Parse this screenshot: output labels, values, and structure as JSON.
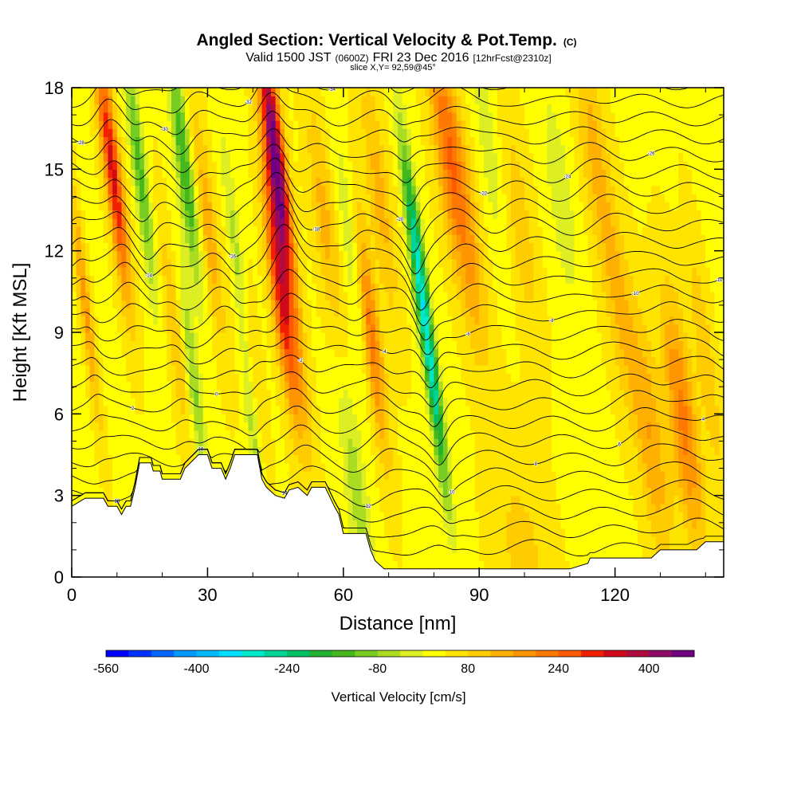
{
  "chart_data": {
    "type": "heatmap",
    "title": "Angled Section: Vertical Velocity & Pot.Temp.",
    "title_units": "(C)",
    "subtitle_parts": [
      "Valid 1500 JST",
      "(0600Z)",
      "FRI 23 Dec 2016",
      "[12hrFcst@2310z]"
    ],
    "subtitle2": "slice X,Y= 92,59@45°",
    "xlabel": "Distance [nm]",
    "ylabel": "Height [Kft MSL]",
    "xlim": [
      0,
      144
    ],
    "ylim": [
      0,
      18
    ],
    "xticks": [
      "0",
      "30",
      "60",
      "90",
      "120"
    ],
    "xtick_values": [
      0,
      30,
      60,
      90,
      120
    ],
    "yticks": [
      "0",
      "3",
      "6",
      "9",
      "12",
      "15",
      "18"
    ],
    "ytick_values": [
      0,
      3,
      6,
      9,
      12,
      15,
      18
    ],
    "colorbar": {
      "title": "Vertical Velocity [cm/s]",
      "min": -560,
      "max": 480,
      "step": 40,
      "labels": [
        "-560",
        "-400",
        "-240",
        "-80",
        "80",
        "240",
        "400"
      ],
      "label_values": [
        -560,
        -400,
        -240,
        -80,
        80,
        240,
        400
      ],
      "colors": [
        "#0000ff",
        "#0033ff",
        "#0066ff",
        "#0099ff",
        "#00bbff",
        "#00ddff",
        "#00e8c8",
        "#00d496",
        "#00c064",
        "#22b230",
        "#44b81c",
        "#77cc22",
        "#aadd22",
        "#ddee22",
        "#ffff00",
        "#ffe400",
        "#ffcc00",
        "#ffb000",
        "#ff9600",
        "#ff7800",
        "#ff5a00",
        "#f02000",
        "#d00a1a",
        "#b00c40",
        "#900a68",
        "#700080"
      ]
    },
    "updrafts": [
      {
        "x": 3,
        "z": 10,
        "w": 140,
        "wx": 1.2
      },
      {
        "x": 9,
        "z": 15,
        "w": 300,
        "wx": 1.8
      },
      {
        "x": 23,
        "z": 9,
        "w": 80,
        "wx": 2
      },
      {
        "x": 30,
        "z": 13,
        "w": 110,
        "wx": 2
      },
      {
        "x": 39,
        "z": 8,
        "w": 160,
        "wx": 2
      },
      {
        "x": 45,
        "z": 15.5,
        "w": 440,
        "wx": 2
      },
      {
        "x": 46,
        "z": 10.5,
        "w": 260,
        "wx": 2
      },
      {
        "x": 50,
        "z": 8,
        "w": 80,
        "wx": 2
      },
      {
        "x": 56,
        "z": 13,
        "w": 100,
        "wx": 2.5
      },
      {
        "x": 66,
        "z": 9,
        "w": 200,
        "wx": 2
      },
      {
        "x": 68,
        "z": 14,
        "w": 100,
        "wx": 2.5
      },
      {
        "x": 83,
        "z": 16,
        "w": 180,
        "wx": 3
      },
      {
        "x": 88,
        "z": 12,
        "w": 100,
        "wx": 3
      },
      {
        "x": 99,
        "z": 13,
        "w": 70,
        "wx": 3
      },
      {
        "x": 115,
        "z": 16,
        "w": 90,
        "wx": 3
      },
      {
        "x": 121,
        "z": 10,
        "w": 80,
        "wx": 3
      },
      {
        "x": 128,
        "z": 5,
        "w": 120,
        "wx": 3
      },
      {
        "x": 135,
        "z": 5.8,
        "w": 180,
        "wx": 3
      },
      {
        "x": 140,
        "z": 8,
        "w": 80,
        "wx": 2
      },
      {
        "x": 100,
        "z": 0.5,
        "w": 60,
        "wx": 6
      }
    ],
    "downdrafts": [
      {
        "x": 15,
        "z": 15,
        "w": -180,
        "wx": 1.5
      },
      {
        "x": 25,
        "z": 15,
        "w": -200,
        "wx": 1.8
      },
      {
        "x": 27,
        "z": 7,
        "w": -130,
        "wx": 1.5
      },
      {
        "x": 37,
        "z": 11,
        "w": -150,
        "wx": 1.5
      },
      {
        "x": 40,
        "z": 5.5,
        "w": -160,
        "wx": 1.5
      },
      {
        "x": 62,
        "z": 12,
        "w": -90,
        "wx": 2
      },
      {
        "x": 76,
        "z": 12,
        "w": -260,
        "wx": 1.5
      },
      {
        "x": 80,
        "z": 7,
        "w": -240,
        "wx": 1.5
      },
      {
        "x": 92,
        "z": 16,
        "w": -60,
        "wx": 2.5
      },
      {
        "x": 63,
        "z": 3,
        "w": -100,
        "wx": 2.5
      },
      {
        "x": 108,
        "z": 14,
        "w": -60,
        "wx": 3
      }
    ],
    "terrain": [
      [
        0,
        2.6
      ],
      [
        3,
        2.9
      ],
      [
        7,
        2.9
      ],
      [
        8,
        2.6
      ],
      [
        10,
        2.6
      ],
      [
        11,
        2.3
      ],
      [
        12,
        2.6
      ],
      [
        13,
        2.6
      ],
      [
        14,
        3.3
      ],
      [
        15,
        4.2
      ],
      [
        17.5,
        4.2
      ],
      [
        18,
        3.9
      ],
      [
        19.5,
        3.9
      ],
      [
        20,
        3.6
      ],
      [
        24,
        3.6
      ],
      [
        25,
        4.0
      ],
      [
        28,
        4.5
      ],
      [
        30,
        4.5
      ],
      [
        31,
        4.0
      ],
      [
        33,
        4.0
      ],
      [
        34,
        3.6
      ],
      [
        35,
        4.0
      ],
      [
        36,
        4.5
      ],
      [
        41,
        4.5
      ],
      [
        42,
        3.6
      ],
      [
        43,
        3.3
      ],
      [
        45,
        3.0
      ],
      [
        47,
        2.9
      ],
      [
        48,
        3.2
      ],
      [
        50,
        3.3
      ],
      [
        52,
        3.0
      ],
      [
        53,
        3.3
      ],
      [
        56,
        3.3
      ],
      [
        58,
        2.6
      ],
      [
        59,
        2.3
      ],
      [
        60,
        1.6
      ],
      [
        65,
        1.6
      ],
      [
        66,
        1.0
      ],
      [
        67,
        0.6
      ],
      [
        69,
        0.3
      ],
      [
        90,
        0.3
      ],
      [
        95,
        0.3
      ],
      [
        98,
        0.3
      ],
      [
        110,
        0.3
      ],
      [
        114,
        0.5
      ],
      [
        114.5,
        0.7
      ],
      [
        128,
        0.7
      ],
      [
        130,
        1.0
      ],
      [
        138,
        1.0
      ],
      [
        140,
        1.3
      ],
      [
        144,
        1.3
      ]
    ],
    "theta_levels": 27,
    "theta_labels": [
      "18",
      "16",
      "14",
      "12",
      "10",
      "8",
      "6",
      "4",
      "2",
      "0",
      "-2",
      "-4",
      "-6",
      "-8",
      "-10",
      "-12",
      "-14",
      "-16",
      "-18",
      "-20",
      "-22",
      "-24",
      "-26",
      "-28",
      "-30",
      "-32",
      "-34"
    ]
  }
}
